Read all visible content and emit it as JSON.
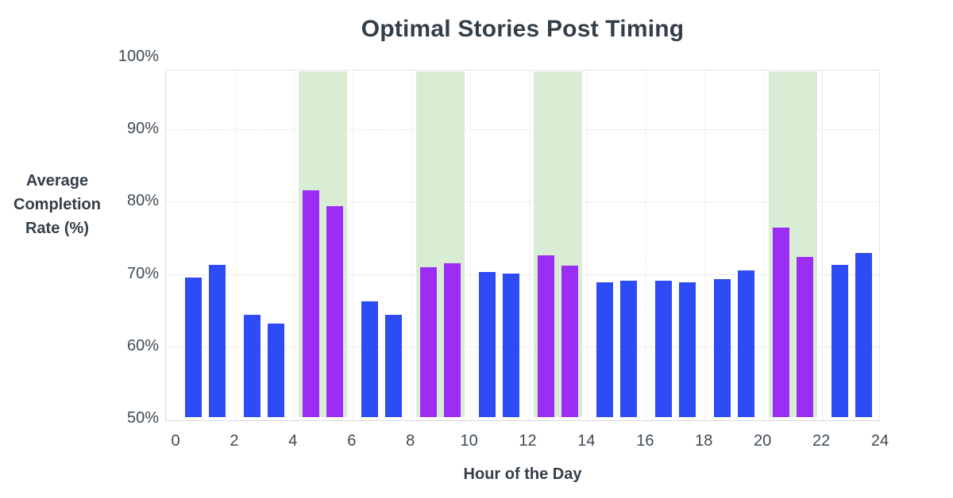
{
  "title": "Optimal Stories Post Timing",
  "y_axis": {
    "title_lines": [
      "Average",
      "Completion",
      "Rate (%)"
    ],
    "ticks": [
      {
        "label": "100%",
        "value": 100
      },
      {
        "label": "90%",
        "value": 90
      },
      {
        "label": "80%",
        "value": 80
      },
      {
        "label": "70%",
        "value": 70
      },
      {
        "label": "60%",
        "value": 60
      },
      {
        "label": "50%",
        "value": 50
      }
    ]
  },
  "x_axis": {
    "title": "Hour of the Day",
    "ticks": [
      {
        "label": "0",
        "value": 0
      },
      {
        "label": "2",
        "value": 2
      },
      {
        "label": "4",
        "value": 4
      },
      {
        "label": "6",
        "value": 6
      },
      {
        "label": "8",
        "value": 8
      },
      {
        "label": "10",
        "value": 10
      },
      {
        "label": "12",
        "value": 12
      },
      {
        "label": "14",
        "value": 14
      },
      {
        "label": "16",
        "value": 16
      },
      {
        "label": "18",
        "value": 18
      },
      {
        "label": "20",
        "value": 20
      },
      {
        "label": "22",
        "value": 22
      },
      {
        "label": "24",
        "value": 24
      }
    ]
  },
  "chart_data": {
    "type": "bar",
    "title": "Optimal Stories Post Timing",
    "xlabel": "Hour of the Day",
    "ylabel": "Average Completion Rate (%)",
    "x_hours": [
      0,
      1,
      2,
      3,
      4,
      5,
      6,
      7,
      8,
      9,
      10,
      11,
      12,
      13,
      14,
      15,
      16,
      17,
      18,
      19,
      20,
      21,
      22,
      23
    ],
    "values": [
      69.3,
      71.0,
      64.1,
      62.9,
      81.4,
      79.2,
      66.0,
      64.2,
      70.7,
      71.3,
      70.1,
      69.8,
      72.4,
      70.9,
      68.6,
      68.9,
      68.9,
      68.6,
      69.1,
      70.3,
      76.2,
      72.1,
      71.0,
      72.7
    ],
    "optimal_hours": [
      4,
      5,
      8,
      9,
      12,
      13,
      20,
      21
    ],
    "highlight_ranges": [
      [
        4,
        6
      ],
      [
        8,
        10
      ],
      [
        12,
        14
      ],
      [
        20,
        22
      ]
    ],
    "highlight_top": 97.8,
    "ylim": [
      50,
      100
    ],
    "xlim": [
      0,
      24
    ],
    "grid": true,
    "legend": false,
    "colors": {
      "default_bar": "#2d4cf5",
      "optimal_bar": "#9b2df5",
      "highlight": "#d8edd4",
      "title_text": "#333e48",
      "tick_text": "#3f4a54",
      "gridline": "#dedede"
    }
  }
}
